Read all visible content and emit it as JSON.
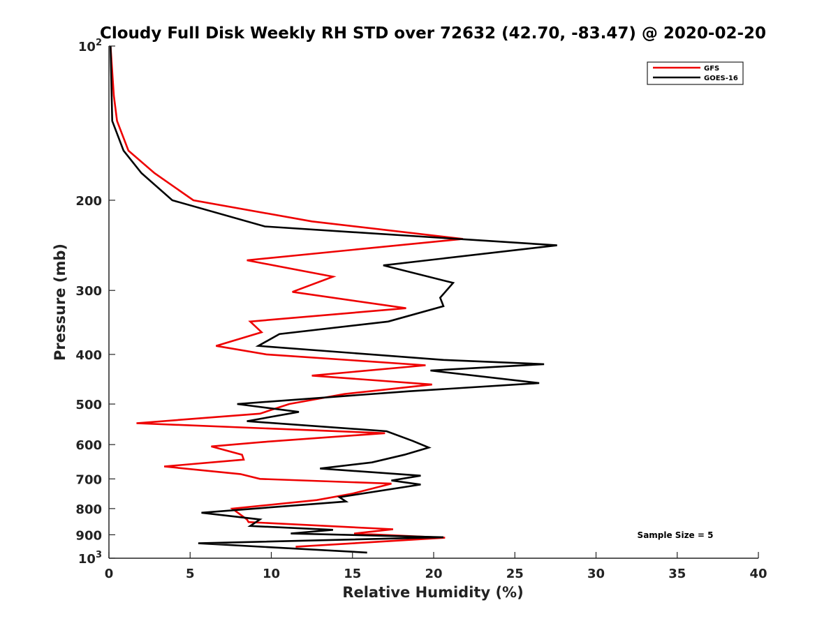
{
  "chart_data": {
    "type": "line",
    "title": "Cloudy Full Disk Weekly RH STD over 72632 (42.70, -83.47) @ 2020-02-20",
    "xlabel": "Relative Humidity (%)",
    "ylabel": "Pressure (mb)",
    "xlim": [
      0,
      40
    ],
    "ylim": [
      100,
      1000
    ],
    "y_scale": "log",
    "y_reversed": true,
    "grid": false,
    "legend_position": "top-right",
    "x_ticks": [
      "0",
      "5",
      "10",
      "15",
      "20",
      "25",
      "30",
      "35",
      "40"
    ],
    "y_ticks": [
      {
        "value": 100,
        "base": "10",
        "exp": "2"
      },
      {
        "value": 200,
        "label": "200"
      },
      {
        "value": 300,
        "label": "300"
      },
      {
        "value": 400,
        "label": "400"
      },
      {
        "value": 500,
        "label": "500"
      },
      {
        "value": 600,
        "label": "600"
      },
      {
        "value": 700,
        "label": "700"
      },
      {
        "value": 800,
        "label": "800"
      },
      {
        "value": 900,
        "label": "900"
      },
      {
        "value": 1000,
        "base": "10",
        "exp": "3"
      }
    ],
    "annotation": "Sample Size = 5",
    "series": [
      {
        "name": "GFS",
        "color": "#ee0000",
        "points": [
          [
            0.1,
            100
          ],
          [
            0.3,
            125
          ],
          [
            0.5,
            140
          ],
          [
            1.2,
            160
          ],
          [
            2.8,
            177
          ],
          [
            5.2,
            200
          ],
          [
            12.5,
            220
          ],
          [
            21.8,
            238
          ],
          [
            8.5,
            262
          ],
          [
            13.8,
            282
          ],
          [
            11.3,
            302
          ],
          [
            18.3,
            325
          ],
          [
            8.7,
            345
          ],
          [
            9.4,
            362
          ],
          [
            6.6,
            385
          ],
          [
            9.7,
            400
          ],
          [
            19.5,
            420
          ],
          [
            12.5,
            440
          ],
          [
            19.9,
            458
          ],
          [
            14.5,
            478
          ],
          [
            11.1,
            500
          ],
          [
            9.3,
            522
          ],
          [
            1.7,
            545
          ],
          [
            17.0,
            570
          ],
          [
            9.5,
            593
          ],
          [
            6.3,
            605
          ],
          [
            8.2,
            628
          ],
          [
            8.3,
            642
          ],
          [
            3.4,
            662
          ],
          [
            8.1,
            685
          ],
          [
            9.3,
            700
          ],
          [
            17.4,
            715
          ],
          [
            15.0,
            748
          ],
          [
            12.8,
            770
          ],
          [
            7.6,
            800
          ],
          [
            8.5,
            840
          ],
          [
            8.6,
            850
          ],
          [
            17.5,
            878
          ],
          [
            15.1,
            895
          ],
          [
            20.7,
            912
          ],
          [
            11.5,
            950
          ]
        ]
      },
      {
        "name": "GOES-16",
        "color": "#000000",
        "points": [
          [
            0.1,
            100
          ],
          [
            0.2,
            140
          ],
          [
            0.9,
            160
          ],
          [
            2.0,
            177
          ],
          [
            3.9,
            200
          ],
          [
            9.6,
            225
          ],
          [
            27.6,
            245
          ],
          [
            16.9,
            268
          ],
          [
            21.2,
            290
          ],
          [
            20.4,
            310
          ],
          [
            20.6,
            322
          ],
          [
            17.2,
            345
          ],
          [
            10.5,
            365
          ],
          [
            9.2,
            385
          ],
          [
            20.6,
            410
          ],
          [
            26.8,
            418
          ],
          [
            19.8,
            430
          ],
          [
            26.5,
            455
          ],
          [
            18.5,
            472
          ],
          [
            7.9,
            500
          ],
          [
            11.7,
            518
          ],
          [
            8.5,
            540
          ],
          [
            17.1,
            565
          ],
          [
            18.7,
            590
          ],
          [
            19.7,
            608
          ],
          [
            18.2,
            628
          ],
          [
            16.2,
            650
          ],
          [
            13.0,
            668
          ],
          [
            19.2,
            690
          ],
          [
            17.4,
            705
          ],
          [
            19.2,
            718
          ],
          [
            14.2,
            760
          ],
          [
            14.6,
            775
          ],
          [
            5.7,
            815
          ],
          [
            9.3,
            840
          ],
          [
            8.7,
            865
          ],
          [
            13.8,
            880
          ],
          [
            11.2,
            895
          ],
          [
            20.6,
            910
          ],
          [
            5.5,
            935
          ],
          [
            15.9,
            975
          ]
        ]
      }
    ]
  }
}
